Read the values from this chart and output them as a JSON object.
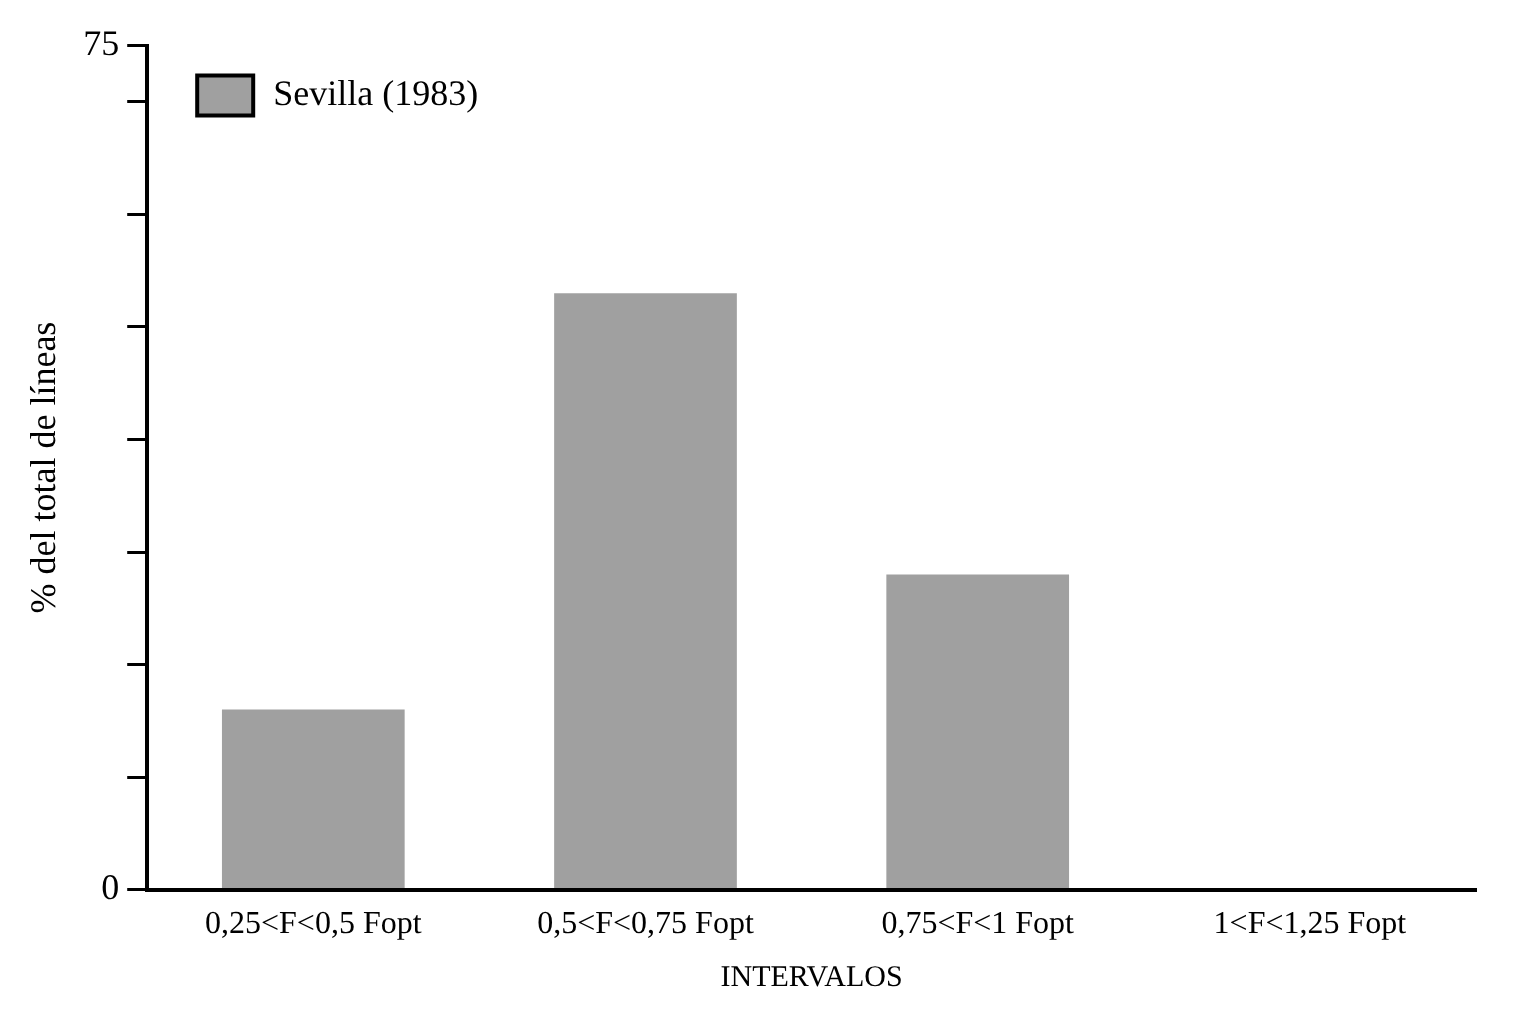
{
  "chart_data": {
    "type": "bar",
    "xlabel": "INTERVALOS",
    "ylabel": "% del total de líneas",
    "categories": [
      "0,25<F<0,5 Fopt",
      "0,5<F<0,75 Fopt",
      "0,75<F<1 Fopt",
      "1<F<1,25 Fopt"
    ],
    "series": [
      {
        "name": "Sevilla (1983)",
        "color": "#a0a0a0",
        "values": [
          16,
          53,
          28,
          0
        ]
      }
    ],
    "ylim": [
      0,
      75
    ],
    "yticks": [
      0,
      {
        "value": 10,
        "label": null
      },
      {
        "value": 20,
        "label": null
      },
      {
        "value": 30,
        "label": null
      },
      {
        "value": 40,
        "label": null
      },
      {
        "value": 50,
        "label": null
      },
      {
        "value": 60,
        "label": null
      },
      {
        "value": 70,
        "label": null
      },
      75
    ],
    "grid": false,
    "legend": "top left"
  }
}
